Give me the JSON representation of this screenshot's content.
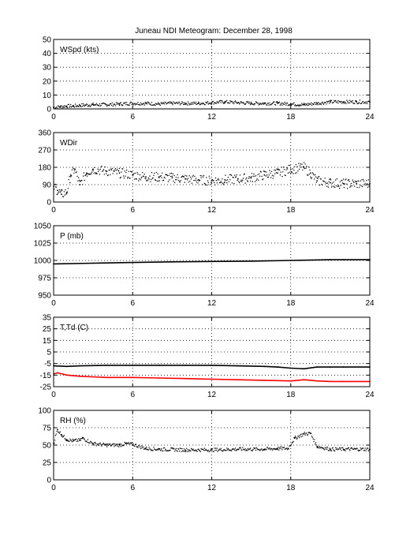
{
  "figure_title": "Juneau NDI Meteogram:   December 28, 1998",
  "chart_data": [
    {
      "type": "scatter",
      "panel_label": "WSpd (kts)",
      "ylim": [
        0,
        50
      ],
      "yticks": [
        0,
        10,
        20,
        30,
        40,
        50
      ],
      "xlim": [
        0,
        24
      ],
      "xticks": [
        0,
        6,
        12,
        18,
        24
      ],
      "grid": true,
      "series": [
        {
          "color": "#000000",
          "x": [
            0,
            0.5,
            1,
            1.5,
            2,
            3,
            4,
            5,
            6,
            7,
            8,
            9,
            10,
            11,
            12,
            13,
            14,
            15,
            16,
            17,
            18,
            19,
            20,
            21,
            22,
            23,
            24
          ],
          "y": [
            1,
            1.5,
            2,
            2,
            2.5,
            3,
            3,
            3.5,
            4,
            4,
            3.5,
            4,
            4,
            4,
            4.5,
            5,
            4.5,
            4,
            4,
            4,
            3.5,
            3,
            4,
            5,
            5,
            5,
            5
          ]
        }
      ]
    },
    {
      "type": "scatter",
      "panel_label": "WDir",
      "ylim": [
        0,
        360
      ],
      "yticks": [
        0,
        90,
        180,
        270,
        360
      ],
      "xlim": [
        0,
        24
      ],
      "xticks": [
        0,
        6,
        12,
        18,
        24
      ],
      "grid": true,
      "series": [
        {
          "color": "#000000",
          "x": [
            0,
            0.3,
            0.6,
            1,
            1.3,
            1.6,
            2,
            2.5,
            3,
            4,
            5,
            6,
            7,
            8,
            9,
            10,
            11,
            12,
            13,
            14,
            15,
            16,
            17,
            18,
            19,
            19.5,
            20,
            21,
            22,
            23,
            24
          ],
          "y": [
            80,
            60,
            40,
            50,
            140,
            170,
            90,
            150,
            170,
            160,
            150,
            140,
            130,
            130,
            125,
            120,
            115,
            110,
            115,
            120,
            125,
            140,
            150,
            170,
            180,
            150,
            110,
            100,
            95,
            95,
            95
          ]
        }
      ]
    },
    {
      "type": "line",
      "panel_label": "P (mb)",
      "ylim": [
        950,
        1050
      ],
      "yticks": [
        950,
        975,
        1000,
        1025,
        1050
      ],
      "xlim": [
        0,
        24
      ],
      "xticks": [
        0,
        6,
        12,
        18,
        24
      ],
      "grid": true,
      "series": [
        {
          "color": "#000000",
          "x": [
            0,
            3,
            6,
            9,
            12,
            15,
            18,
            21,
            22,
            24
          ],
          "y": [
            995,
            996,
            997,
            998,
            998.5,
            999,
            1000,
            1001,
            1001,
            1001
          ]
        }
      ]
    },
    {
      "type": "line",
      "panel_label": "T,Td (C)",
      "ylim": [
        -25,
        35
      ],
      "yticks": [
        -25,
        -15,
        -5,
        5,
        15,
        25,
        35
      ],
      "xlim": [
        0,
        24
      ],
      "xticks": [
        0,
        6,
        12,
        18,
        24
      ],
      "grid": true,
      "series": [
        {
          "color": "#000000",
          "x": [
            0,
            1,
            2,
            4,
            6,
            8,
            10,
            12,
            14,
            16,
            17,
            18,
            19,
            20,
            21,
            22,
            24
          ],
          "y": [
            -7,
            -7.5,
            -7,
            -6.5,
            -6.5,
            -6.5,
            -6.5,
            -6.5,
            -7,
            -7.5,
            -8,
            -9,
            -9.5,
            -8,
            -8,
            -8,
            -8
          ]
        },
        {
          "color": "#ff0000",
          "x": [
            0,
            0.3,
            1,
            2,
            4,
            6,
            8,
            10,
            12,
            14,
            16,
            18,
            19,
            20,
            21,
            22,
            24
          ],
          "y": [
            -14,
            -13,
            -15,
            -16,
            -17,
            -17,
            -17.5,
            -18,
            -18.5,
            -19,
            -19.5,
            -20,
            -19,
            -20,
            -20.5,
            -20.5,
            -20.5
          ]
        }
      ]
    },
    {
      "type": "scatter",
      "panel_label": "RH (%)",
      "ylim": [
        0,
        100
      ],
      "yticks": [
        0,
        25,
        50,
        75,
        100
      ],
      "xlim": [
        0,
        24
      ],
      "xticks": [
        0,
        6,
        12,
        18,
        24
      ],
      "grid": true,
      "series": [
        {
          "color": "#000000",
          "x": [
            0,
            0.3,
            0.6,
            1,
            1.5,
            2,
            2.2,
            3,
            4,
            5,
            5.5,
            6,
            7,
            8,
            10,
            12,
            14,
            16,
            17,
            17.8,
            18.3,
            19,
            19.5,
            20,
            21,
            22,
            24
          ],
          "y": [
            52,
            72,
            65,
            58,
            56,
            57,
            60,
            52,
            50,
            50,
            52,
            51,
            45,
            44,
            43,
            43,
            44,
            44,
            45,
            45,
            60,
            66,
            67,
            48,
            44,
            44,
            44
          ]
        }
      ]
    }
  ]
}
